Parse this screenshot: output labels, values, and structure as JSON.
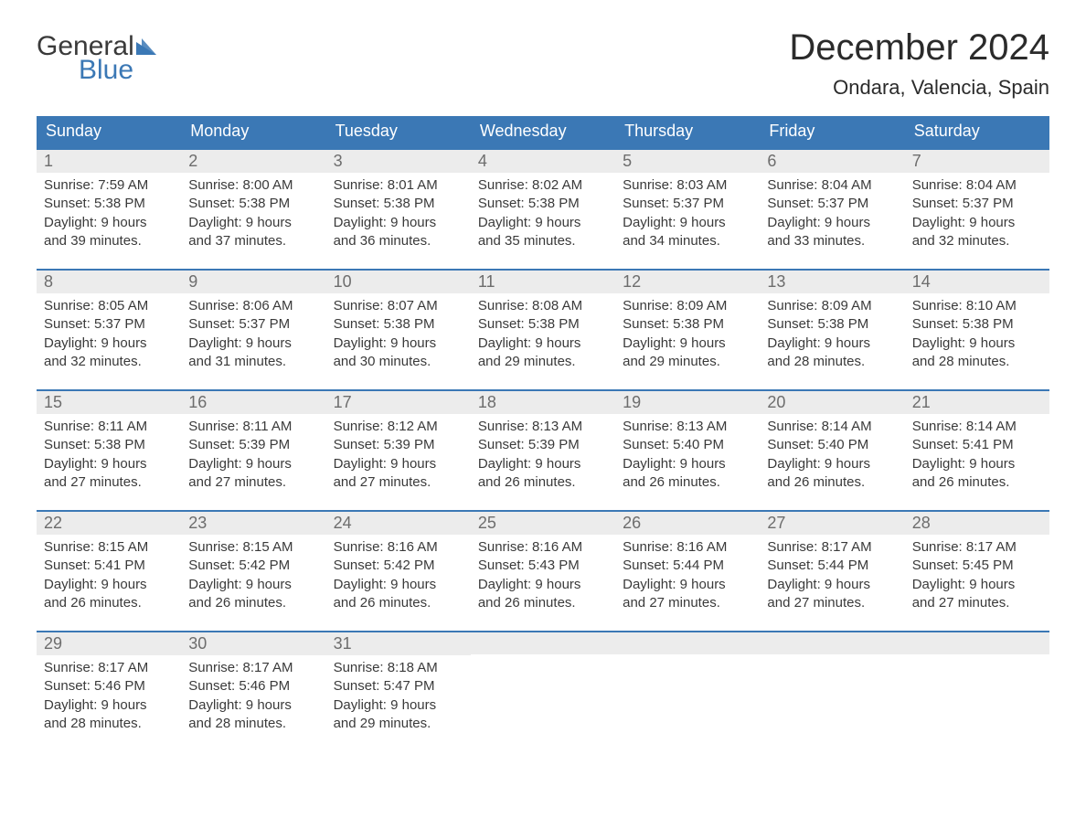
{
  "brand": {
    "part1": "General",
    "part2": "Blue",
    "tri_color": "#3b78b5"
  },
  "title": "December 2024",
  "location": "Ondara, Valencia, Spain",
  "colors": {
    "header_bg": "#3b78b5",
    "header_text": "#ffffff",
    "daynum_bg": "#ececec",
    "daynum_text": "#6d6d6d",
    "body_text": "#3a3a3a",
    "week_border": "#3b78b5",
    "page_bg": "#ffffff"
  },
  "day_names": [
    "Sunday",
    "Monday",
    "Tuesday",
    "Wednesday",
    "Thursday",
    "Friday",
    "Saturday"
  ],
  "weeks": [
    [
      {
        "n": "1",
        "sr": "Sunrise: 7:59 AM",
        "ss": "Sunset: 5:38 PM",
        "d1": "Daylight: 9 hours",
        "d2": "and 39 minutes."
      },
      {
        "n": "2",
        "sr": "Sunrise: 8:00 AM",
        "ss": "Sunset: 5:38 PM",
        "d1": "Daylight: 9 hours",
        "d2": "and 37 minutes."
      },
      {
        "n": "3",
        "sr": "Sunrise: 8:01 AM",
        "ss": "Sunset: 5:38 PM",
        "d1": "Daylight: 9 hours",
        "d2": "and 36 minutes."
      },
      {
        "n": "4",
        "sr": "Sunrise: 8:02 AM",
        "ss": "Sunset: 5:38 PM",
        "d1": "Daylight: 9 hours",
        "d2": "and 35 minutes."
      },
      {
        "n": "5",
        "sr": "Sunrise: 8:03 AM",
        "ss": "Sunset: 5:37 PM",
        "d1": "Daylight: 9 hours",
        "d2": "and 34 minutes."
      },
      {
        "n": "6",
        "sr": "Sunrise: 8:04 AM",
        "ss": "Sunset: 5:37 PM",
        "d1": "Daylight: 9 hours",
        "d2": "and 33 minutes."
      },
      {
        "n": "7",
        "sr": "Sunrise: 8:04 AM",
        "ss": "Sunset: 5:37 PM",
        "d1": "Daylight: 9 hours",
        "d2": "and 32 minutes."
      }
    ],
    [
      {
        "n": "8",
        "sr": "Sunrise: 8:05 AM",
        "ss": "Sunset: 5:37 PM",
        "d1": "Daylight: 9 hours",
        "d2": "and 32 minutes."
      },
      {
        "n": "9",
        "sr": "Sunrise: 8:06 AM",
        "ss": "Sunset: 5:37 PM",
        "d1": "Daylight: 9 hours",
        "d2": "and 31 minutes."
      },
      {
        "n": "10",
        "sr": "Sunrise: 8:07 AM",
        "ss": "Sunset: 5:38 PM",
        "d1": "Daylight: 9 hours",
        "d2": "and 30 minutes."
      },
      {
        "n": "11",
        "sr": "Sunrise: 8:08 AM",
        "ss": "Sunset: 5:38 PM",
        "d1": "Daylight: 9 hours",
        "d2": "and 29 minutes."
      },
      {
        "n": "12",
        "sr": "Sunrise: 8:09 AM",
        "ss": "Sunset: 5:38 PM",
        "d1": "Daylight: 9 hours",
        "d2": "and 29 minutes."
      },
      {
        "n": "13",
        "sr": "Sunrise: 8:09 AM",
        "ss": "Sunset: 5:38 PM",
        "d1": "Daylight: 9 hours",
        "d2": "and 28 minutes."
      },
      {
        "n": "14",
        "sr": "Sunrise: 8:10 AM",
        "ss": "Sunset: 5:38 PM",
        "d1": "Daylight: 9 hours",
        "d2": "and 28 minutes."
      }
    ],
    [
      {
        "n": "15",
        "sr": "Sunrise: 8:11 AM",
        "ss": "Sunset: 5:38 PM",
        "d1": "Daylight: 9 hours",
        "d2": "and 27 minutes."
      },
      {
        "n": "16",
        "sr": "Sunrise: 8:11 AM",
        "ss": "Sunset: 5:39 PM",
        "d1": "Daylight: 9 hours",
        "d2": "and 27 minutes."
      },
      {
        "n": "17",
        "sr": "Sunrise: 8:12 AM",
        "ss": "Sunset: 5:39 PM",
        "d1": "Daylight: 9 hours",
        "d2": "and 27 minutes."
      },
      {
        "n": "18",
        "sr": "Sunrise: 8:13 AM",
        "ss": "Sunset: 5:39 PM",
        "d1": "Daylight: 9 hours",
        "d2": "and 26 minutes."
      },
      {
        "n": "19",
        "sr": "Sunrise: 8:13 AM",
        "ss": "Sunset: 5:40 PM",
        "d1": "Daylight: 9 hours",
        "d2": "and 26 minutes."
      },
      {
        "n": "20",
        "sr": "Sunrise: 8:14 AM",
        "ss": "Sunset: 5:40 PM",
        "d1": "Daylight: 9 hours",
        "d2": "and 26 minutes."
      },
      {
        "n": "21",
        "sr": "Sunrise: 8:14 AM",
        "ss": "Sunset: 5:41 PM",
        "d1": "Daylight: 9 hours",
        "d2": "and 26 minutes."
      }
    ],
    [
      {
        "n": "22",
        "sr": "Sunrise: 8:15 AM",
        "ss": "Sunset: 5:41 PM",
        "d1": "Daylight: 9 hours",
        "d2": "and 26 minutes."
      },
      {
        "n": "23",
        "sr": "Sunrise: 8:15 AM",
        "ss": "Sunset: 5:42 PM",
        "d1": "Daylight: 9 hours",
        "d2": "and 26 minutes."
      },
      {
        "n": "24",
        "sr": "Sunrise: 8:16 AM",
        "ss": "Sunset: 5:42 PM",
        "d1": "Daylight: 9 hours",
        "d2": "and 26 minutes."
      },
      {
        "n": "25",
        "sr": "Sunrise: 8:16 AM",
        "ss": "Sunset: 5:43 PM",
        "d1": "Daylight: 9 hours",
        "d2": "and 26 minutes."
      },
      {
        "n": "26",
        "sr": "Sunrise: 8:16 AM",
        "ss": "Sunset: 5:44 PM",
        "d1": "Daylight: 9 hours",
        "d2": "and 27 minutes."
      },
      {
        "n": "27",
        "sr": "Sunrise: 8:17 AM",
        "ss": "Sunset: 5:44 PM",
        "d1": "Daylight: 9 hours",
        "d2": "and 27 minutes."
      },
      {
        "n": "28",
        "sr": "Sunrise: 8:17 AM",
        "ss": "Sunset: 5:45 PM",
        "d1": "Daylight: 9 hours",
        "d2": "and 27 minutes."
      }
    ],
    [
      {
        "n": "29",
        "sr": "Sunrise: 8:17 AM",
        "ss": "Sunset: 5:46 PM",
        "d1": "Daylight: 9 hours",
        "d2": "and 28 minutes."
      },
      {
        "n": "30",
        "sr": "Sunrise: 8:17 AM",
        "ss": "Sunset: 5:46 PM",
        "d1": "Daylight: 9 hours",
        "d2": "and 28 minutes."
      },
      {
        "n": "31",
        "sr": "Sunrise: 8:18 AM",
        "ss": "Sunset: 5:47 PM",
        "d1": "Daylight: 9 hours",
        "d2": "and 29 minutes."
      },
      {
        "empty": true
      },
      {
        "empty": true
      },
      {
        "empty": true
      },
      {
        "empty": true
      }
    ]
  ]
}
